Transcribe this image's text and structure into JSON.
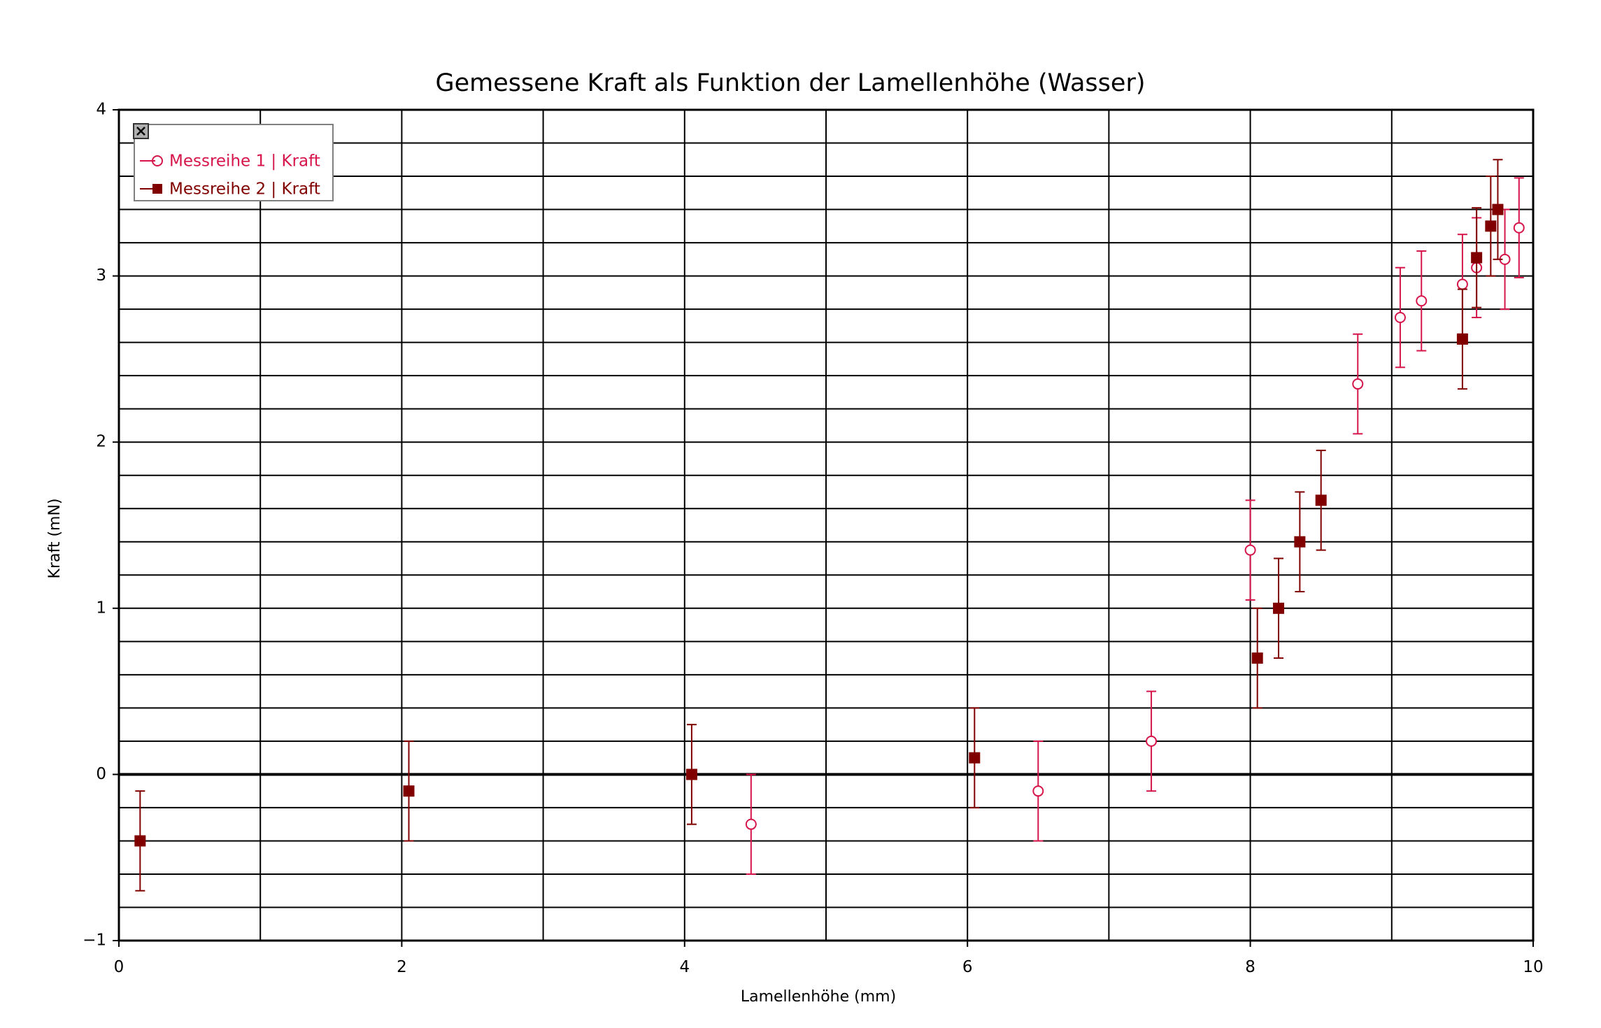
{
  "chart_data": {
    "type": "scatter",
    "title": "Gemessene Kraft als Funktion der Lamellenhöhe (Wasser)",
    "xlabel": "Lamellenhöhe (mm)",
    "ylabel": "Kraft (mN)",
    "xlim": [
      0,
      10
    ],
    "ylim": [
      -1,
      4
    ],
    "x_ticks": [
      "0",
      "2",
      "4",
      "6",
      "8",
      "10"
    ],
    "y_ticks": [
      "−1",
      "0",
      "1",
      "2",
      "3",
      "4"
    ],
    "grid": true,
    "legend_position": "top-left",
    "legend_close_icon": "close-icon",
    "series": [
      {
        "name": "Messreihe 1 | Kraft",
        "color": "#d6154a",
        "marker": "open-circle",
        "x": [
          4.47,
          6.5,
          7.3,
          8.0,
          8.76,
          9.06,
          9.21,
          9.5,
          9.6,
          9.8,
          9.9
        ],
        "y": [
          -0.3,
          -0.1,
          0.2,
          1.35,
          2.35,
          2.75,
          2.85,
          2.95,
          3.05,
          3.1,
          3.29
        ],
        "err": [
          0.3,
          0.3,
          0.3,
          0.3,
          0.3,
          0.3,
          0.3,
          0.3,
          0.3,
          0.3,
          0.3
        ]
      },
      {
        "name": "Messreihe 2 | Kraft",
        "color": "#800000",
        "marker": "filled-square",
        "x": [
          0.15,
          2.05,
          4.05,
          6.05,
          8.05,
          8.2,
          8.35,
          8.5,
          9.5,
          9.6,
          9.7,
          9.75
        ],
        "y": [
          -0.4,
          -0.1,
          0.0,
          0.1,
          0.7,
          1.0,
          1.4,
          1.65,
          2.62,
          3.11,
          3.3,
          3.4
        ],
        "err": [
          0.3,
          0.3,
          0.3,
          0.3,
          0.3,
          0.3,
          0.3,
          0.3,
          0.3,
          0.3,
          0.3,
          0.3
        ]
      }
    ]
  }
}
